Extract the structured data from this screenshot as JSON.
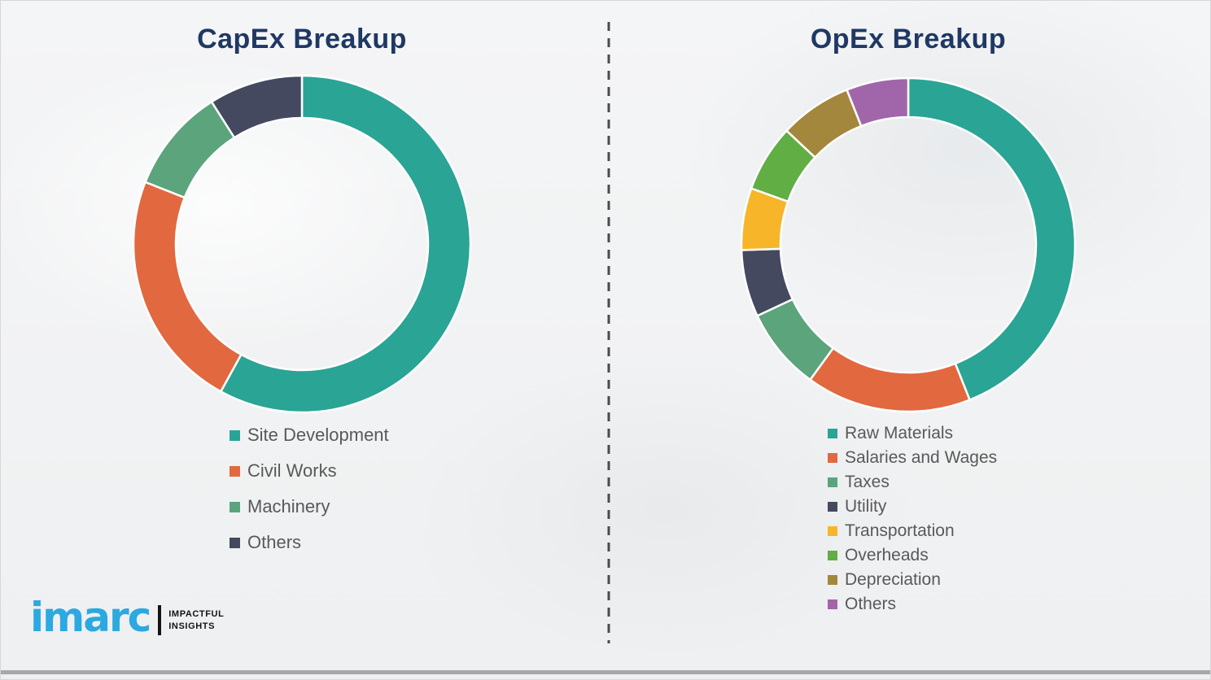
{
  "chart_data": [
    {
      "type": "pie",
      "subtype": "donut",
      "title": "CapEx Breakup",
      "labels": [
        "Site Development",
        "Civil Works",
        "Machinery",
        "Others"
      ],
      "values": [
        58,
        23,
        10,
        9
      ],
      "colors": [
        "#2AA495",
        "#E26840",
        "#5BA47C",
        "#45495F"
      ],
      "units": "percent-estimated",
      "start_angle_deg": 0,
      "direction": "clockwise",
      "legend_position": "below-left",
      "gridlines": false,
      "data_labels_shown": false
    },
    {
      "type": "pie",
      "subtype": "donut",
      "title": "OpEx Breakup",
      "labels": [
        "Raw Materials",
        "Salaries and Wages",
        "Taxes",
        "Utility",
        "Transportation",
        "Overheads",
        "Depreciation",
        "Others"
      ],
      "values": [
        44,
        16,
        8,
        6.5,
        6,
        6.5,
        7,
        6
      ],
      "colors": [
        "#2AA495",
        "#E26840",
        "#5BA47C",
        "#45495F",
        "#F7B62A",
        "#61AE45",
        "#A3873C",
        "#A166AA"
      ],
      "units": "percent-estimated",
      "start_angle_deg": 0,
      "direction": "clockwise",
      "legend_position": "below-left",
      "gridlines": false,
      "data_labels_shown": false
    }
  ],
  "logo": {
    "brand": "imarc",
    "tagline_line1": "IMPACTFUL",
    "tagline_line2": "INSIGHTS",
    "brand_color": "#2BA9E0"
  },
  "styles": {
    "title_color": "#1F3864",
    "legend_text_color": "#595959",
    "divider_color": "#4B4B4B",
    "segment_gap_color": "#FFFFFF",
    "bottom_bar_color": "#A7A8A9"
  }
}
